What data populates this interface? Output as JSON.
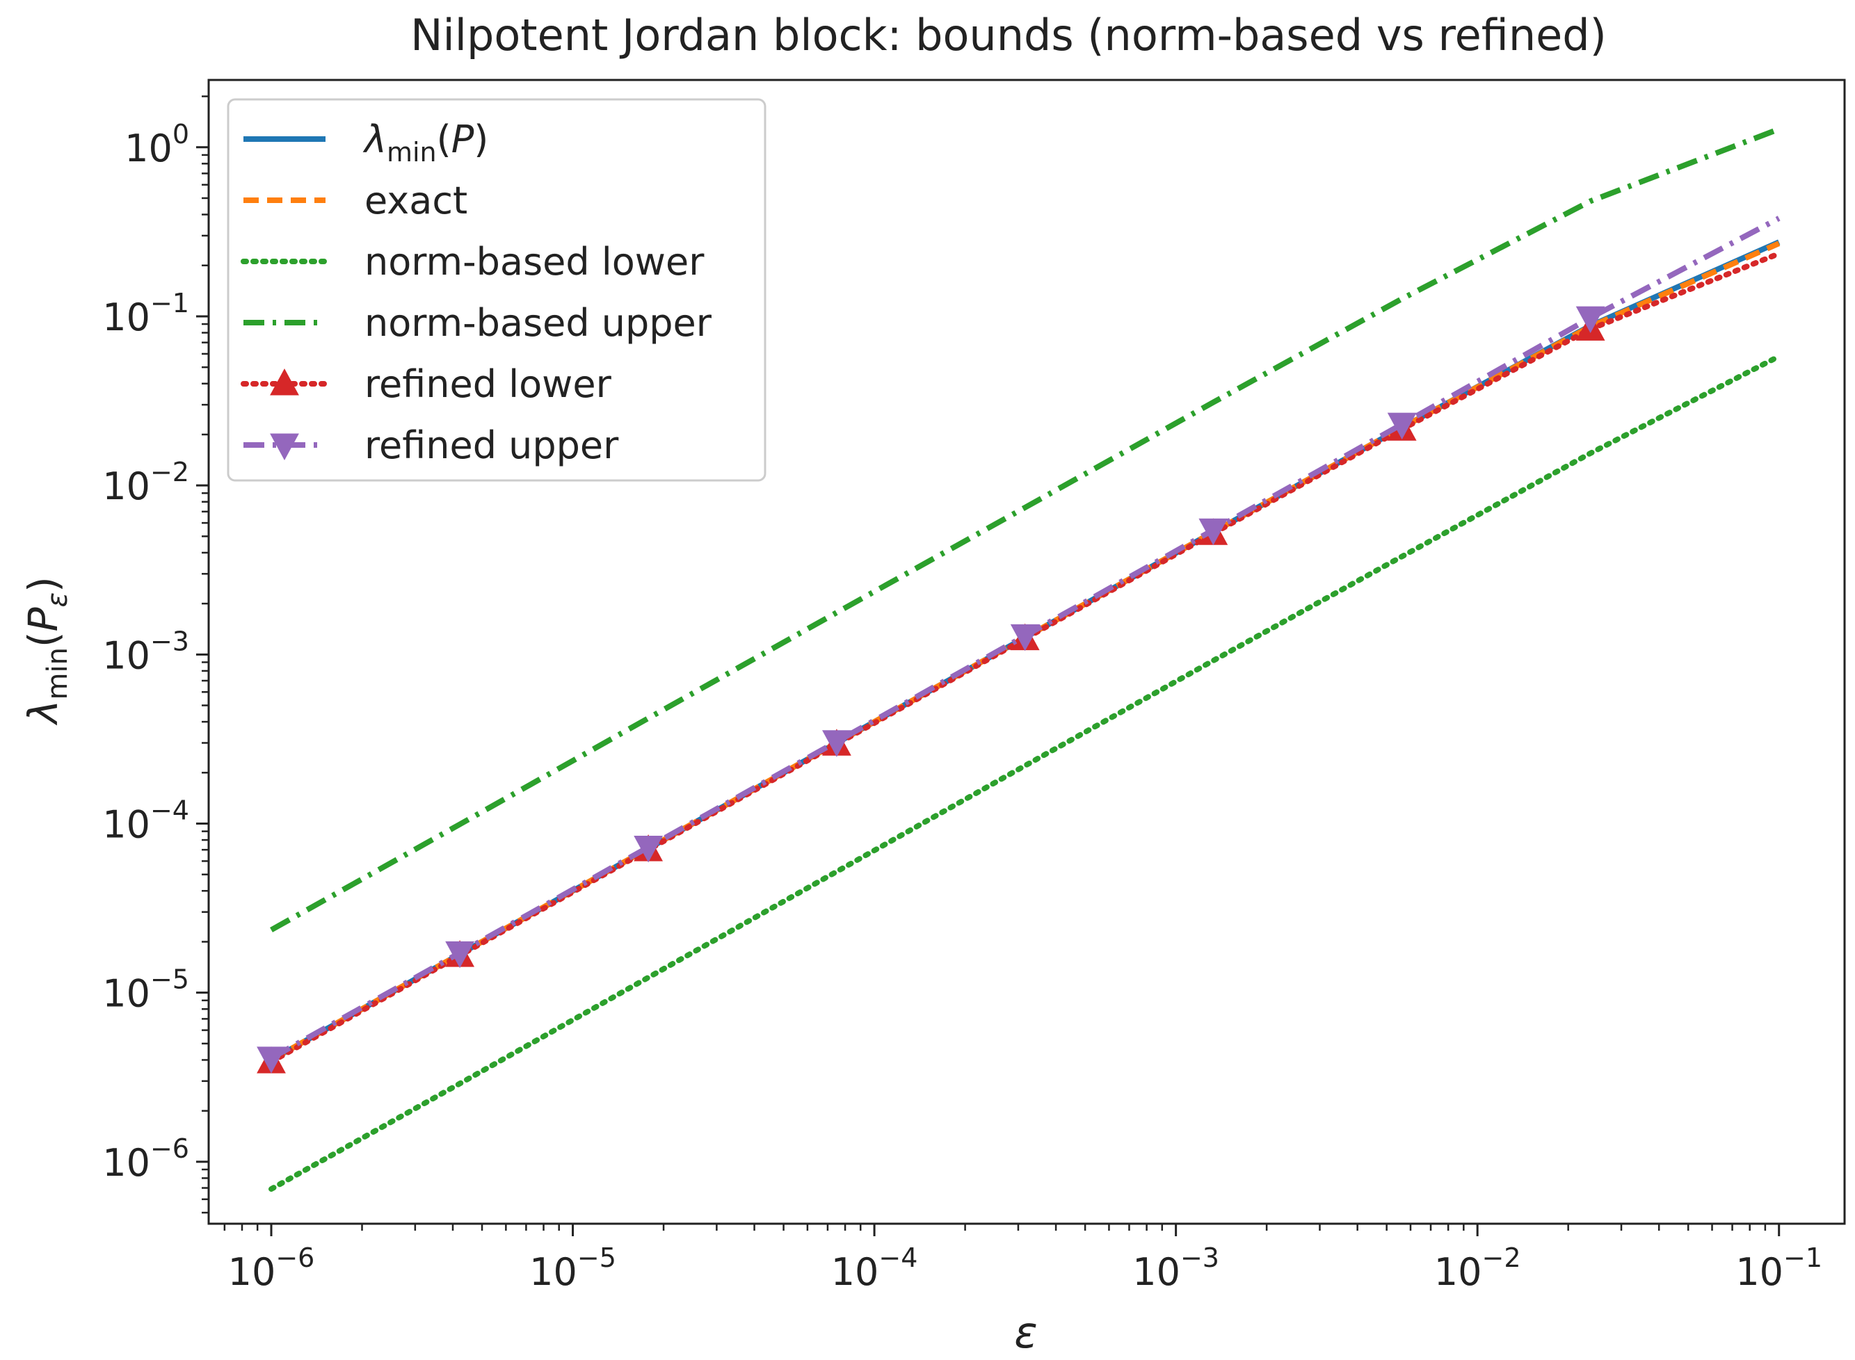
{
  "chart_data": {
    "type": "line",
    "title": "Nilpotent Jordan block: bounds (norm-based vs refined)",
    "xlabel": "ε",
    "ylabel": {
      "base": "λ",
      "sub": "min",
      "arg": "P",
      "argsub": "ε"
    },
    "xscale": "log",
    "yscale": "log",
    "xlim": [
      6.2e-07,
      0.165
    ],
    "ylim": [
      4.3e-07,
      2.5
    ],
    "grid": false,
    "legend_position": "top-left",
    "x_ticks": [
      {
        "value": 1e-06,
        "base": "10",
        "exp": "−6"
      },
      {
        "value": 1e-05,
        "base": "10",
        "exp": "−5"
      },
      {
        "value": 0.0001,
        "base": "10",
        "exp": "−4"
      },
      {
        "value": 0.001,
        "base": "10",
        "exp": "−3"
      },
      {
        "value": 0.01,
        "base": "10",
        "exp": "−2"
      },
      {
        "value": 0.1,
        "base": "10",
        "exp": "−1"
      }
    ],
    "y_ticks": [
      {
        "value": 1e-06,
        "base": "10",
        "exp": "−6"
      },
      {
        "value": 1e-05,
        "base": "10",
        "exp": "−5"
      },
      {
        "value": 0.0001,
        "base": "10",
        "exp": "−4"
      },
      {
        "value": 0.001,
        "base": "10",
        "exp": "−3"
      },
      {
        "value": 0.01,
        "base": "10",
        "exp": "−2"
      },
      {
        "value": 0.1,
        "base": "10",
        "exp": "−1"
      },
      {
        "value": 1,
        "base": "10",
        "exp": "0"
      }
    ],
    "x": [
      1e-06,
      4.22e-06,
      1.78e-05,
      7.5e-05,
      0.000316,
      0.00133,
      0.00562,
      0.0237,
      0.1
    ],
    "series": [
      {
        "label_html": "λ<tspan baseline-shift=\"-30%\" font-size=\"70%\">min</tspan>(P)",
        "label_parts": {
          "base": "λ",
          "sub": "min",
          "arg": "P"
        },
        "color": "#1f77b4",
        "dash": "none",
        "marker": "none",
        "values": [
          4e-06,
          1.69e-05,
          7.12e-05,
          0.0003,
          0.00126,
          0.0053,
          0.022,
          0.088,
          0.275
        ]
      },
      {
        "label": "exact",
        "color": "#ff7f0e",
        "dash": "22 12",
        "marker": "none",
        "values": [
          4e-06,
          1.69e-05,
          7.12e-05,
          0.0003,
          0.00126,
          0.0053,
          0.022,
          0.087,
          0.27
        ]
      },
      {
        "label": "norm-based lower",
        "color": "#2ca02c",
        "dash": "4 10",
        "marker": "none",
        "values": [
          6.9e-07,
          2.9e-06,
          1.23e-05,
          5.2e-05,
          0.00022,
          0.00092,
          0.0038,
          0.0155,
          0.058
        ]
      },
      {
        "label": "norm-based upper",
        "color": "#2ca02c",
        "dash": "30 12 5 12",
        "marker": "none",
        "values": [
          2.35e-05,
          9.9e-05,
          0.00042,
          0.00177,
          0.0074,
          0.031,
          0.127,
          0.48,
          1.28
        ]
      },
      {
        "label": "refined lower",
        "color": "#d62728",
        "dash": "4 10",
        "marker": "triangle-up",
        "values": [
          3.9e-06,
          1.66e-05,
          7e-05,
          0.000295,
          0.00124,
          0.0052,
          0.0215,
          0.084,
          0.235
        ]
      },
      {
        "label": "refined upper",
        "color": "#9467bd",
        "dash": "30 12 5 12",
        "marker": "triangle-down",
        "values": [
          4.1e-06,
          1.72e-05,
          7.25e-05,
          0.000305,
          0.00129,
          0.00545,
          0.023,
          0.098,
          0.38
        ]
      }
    ]
  }
}
